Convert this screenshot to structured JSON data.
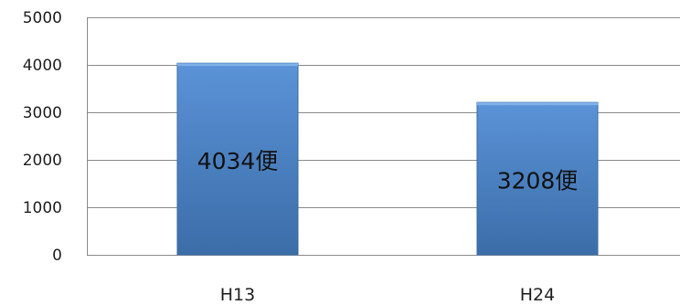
{
  "chart_data": {
    "type": "bar",
    "categories": [
      "H13",
      "H24"
    ],
    "values": [
      4034,
      3208
    ],
    "data_labels": [
      "4034便",
      "3208便"
    ],
    "ylim": [
      0,
      5000
    ],
    "y_ticks": [
      0,
      1000,
      2000,
      3000,
      4000,
      5000
    ],
    "grid": true,
    "legend": "none",
    "bar_color": "#4F81BD",
    "bar_gradient": [
      "#5B93D8",
      "#3B6DA8"
    ]
  }
}
